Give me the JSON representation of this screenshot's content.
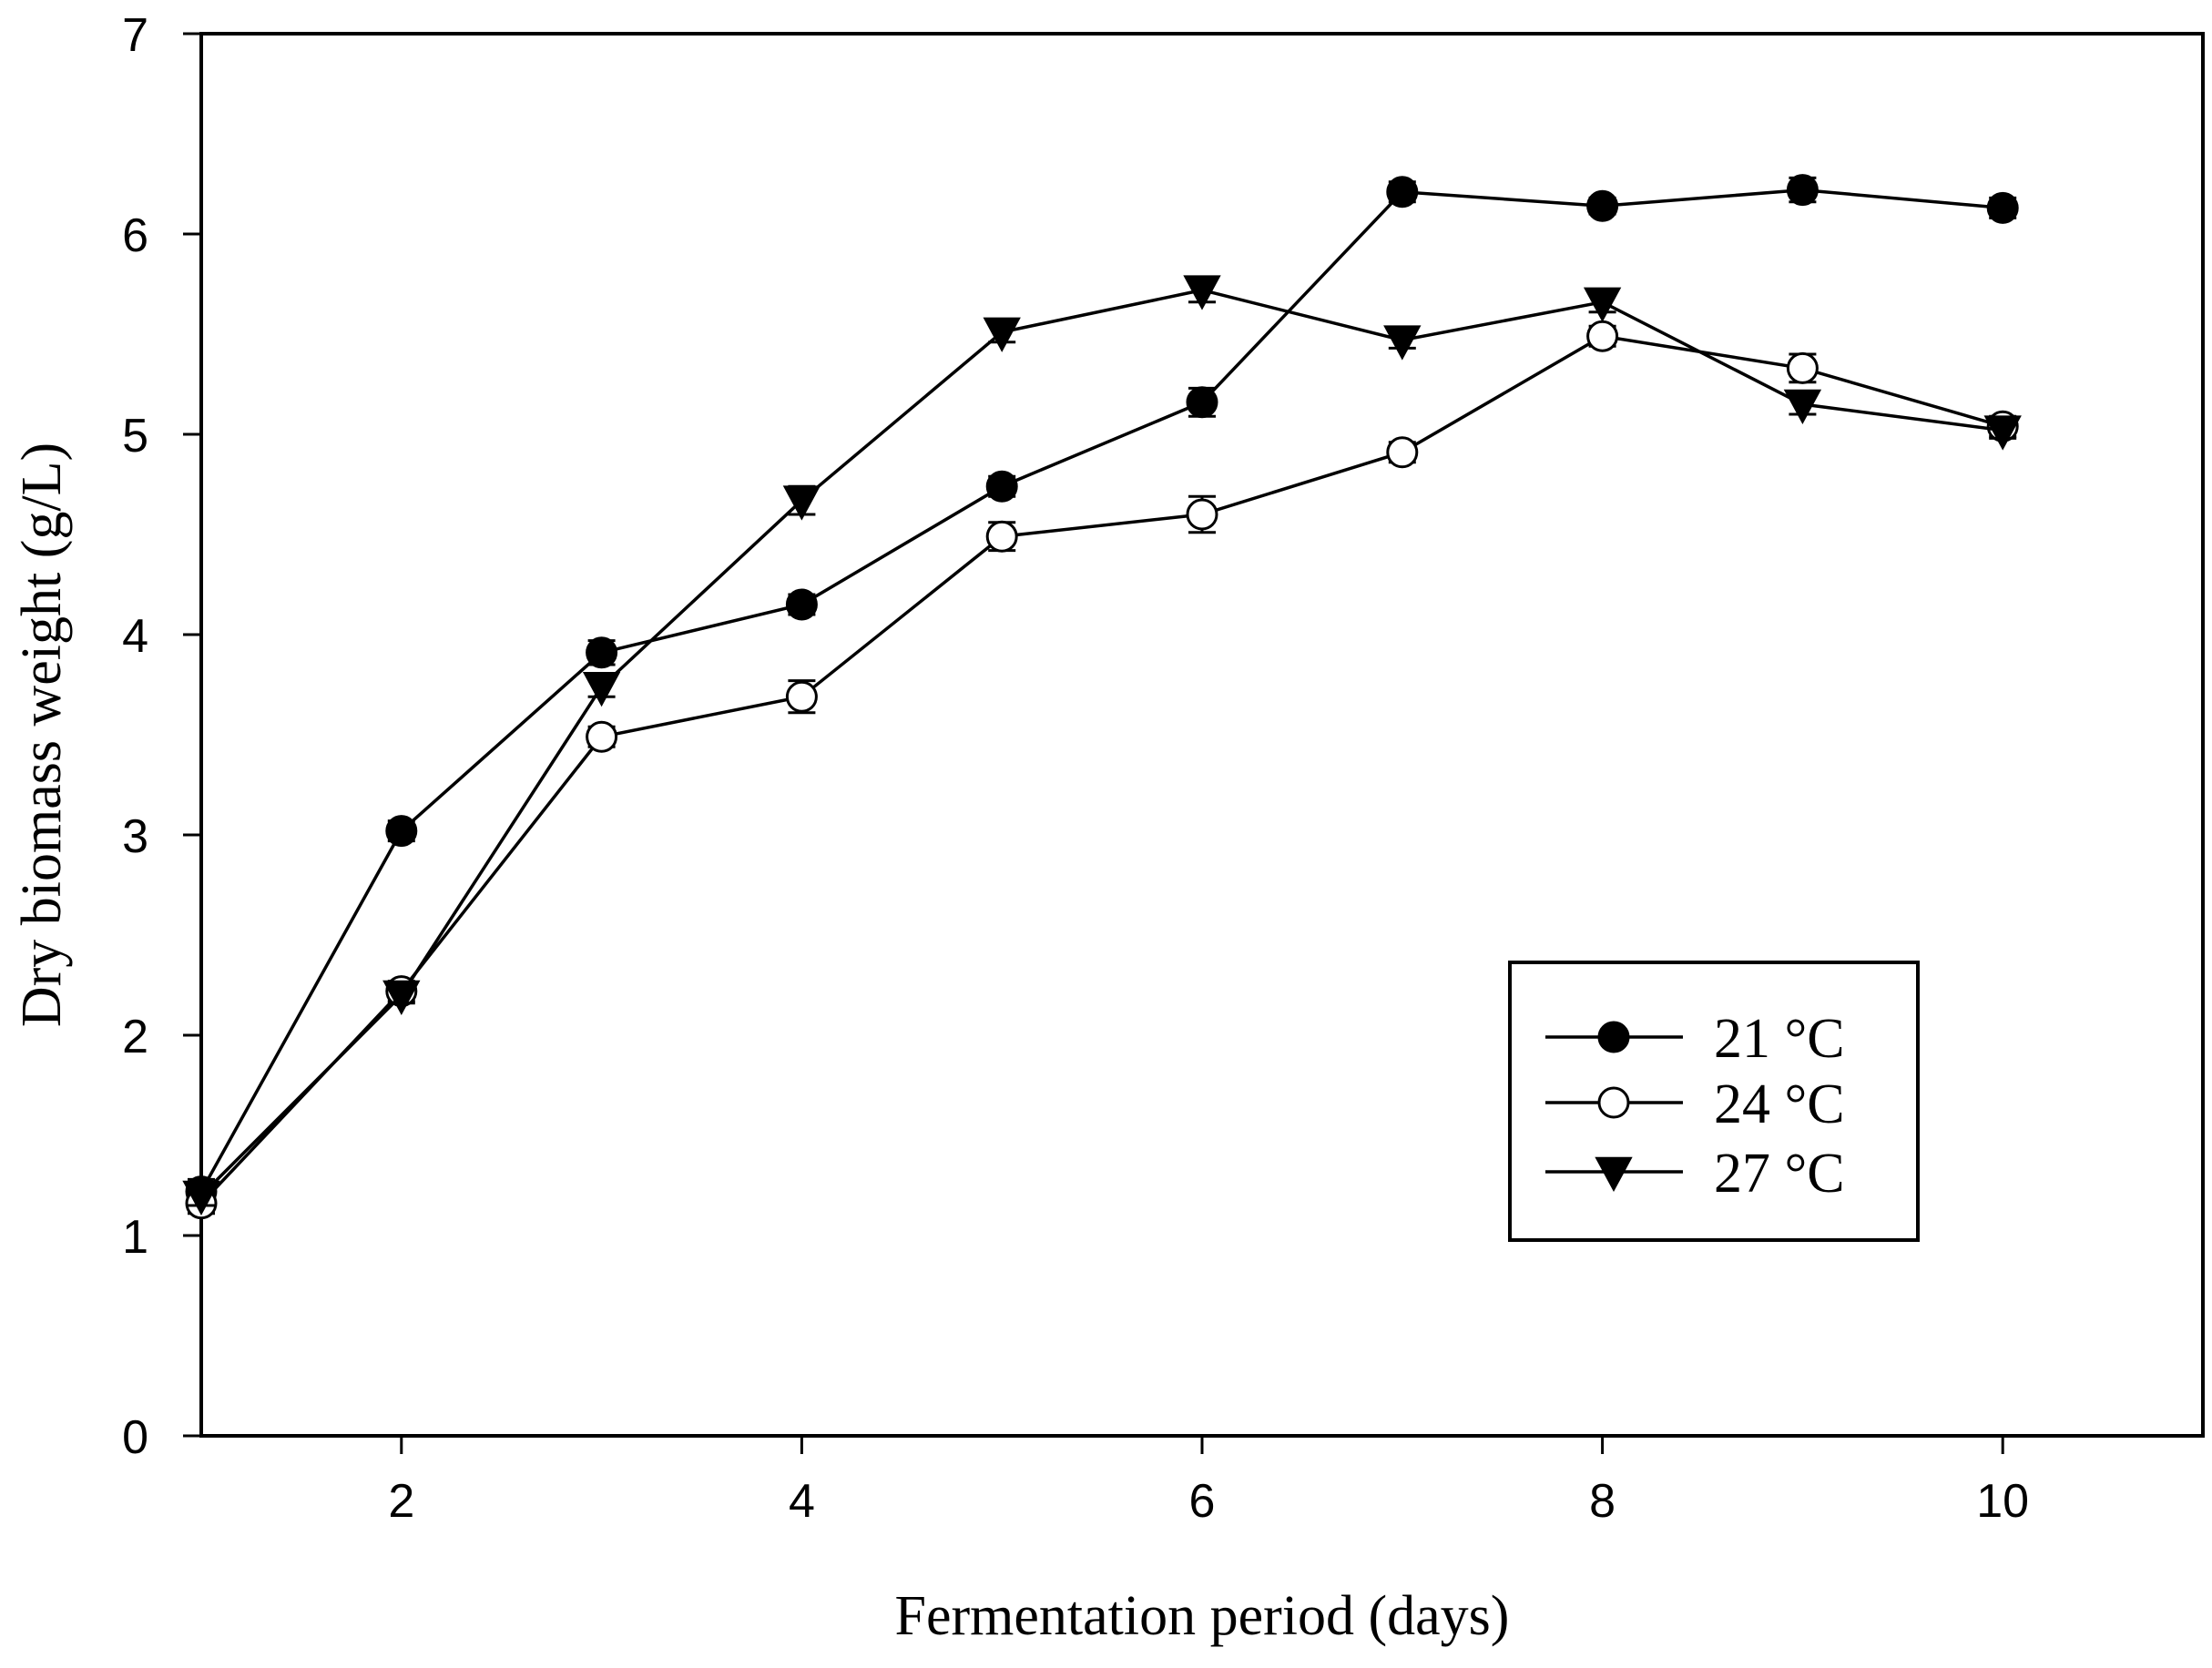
{
  "chart_data": {
    "type": "line",
    "title": "",
    "xlabel": "Fermentation period (days)",
    "ylabel": "Dry biomass weight (g/L)",
    "xlim": [
      1,
      11
    ],
    "ylim": [
      0,
      7
    ],
    "xticks": [
      2,
      4,
      6,
      8,
      10
    ],
    "yticks": [
      0,
      1,
      2,
      3,
      4,
      5,
      6,
      7
    ],
    "grid": false,
    "legend_position": "center-right",
    "x": [
      1,
      2,
      3,
      4,
      5,
      6,
      7,
      8,
      9,
      10
    ],
    "series": [
      {
        "name": "21 °C",
        "marker": "filled-circle",
        "values": [
          1.22,
          3.02,
          3.91,
          4.15,
          4.74,
          5.16,
          6.21,
          6.14,
          6.22,
          6.13
        ],
        "errors": [
          0.06,
          0.05,
          0.06,
          0.05,
          0.05,
          0.07,
          0.05,
          0.04,
          0.06,
          0.05
        ]
      },
      {
        "name": "24 °C",
        "marker": "open-circle",
        "values": [
          1.16,
          2.22,
          3.49,
          3.69,
          4.49,
          4.6,
          4.91,
          5.49,
          5.33,
          5.04
        ],
        "errors": [
          0.05,
          0.05,
          0.05,
          0.08,
          0.07,
          0.09,
          0.05,
          0.05,
          0.07,
          0.05
        ]
      },
      {
        "name": "27 °C",
        "marker": "filled-triangle-down",
        "values": [
          1.2,
          2.2,
          3.74,
          4.67,
          5.51,
          5.72,
          5.47,
          5.66,
          5.15,
          5.02
        ],
        "errors": [
          0.05,
          0.04,
          0.05,
          0.07,
          0.05,
          0.06,
          0.04,
          0.05,
          0.05,
          0.04
        ]
      }
    ]
  }
}
